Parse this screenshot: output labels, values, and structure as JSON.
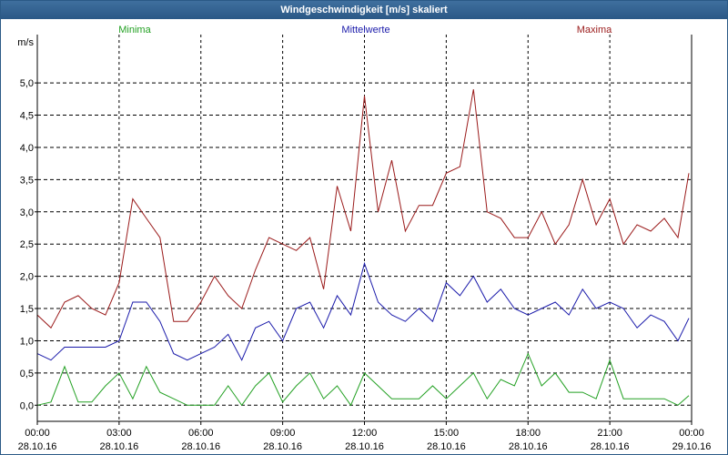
{
  "window": {
    "title": "Windgeschwindigkeit [m/s] skaliert"
  },
  "chart_data": {
    "type": "line",
    "title": "Windgeschwindigkeit [m/s] skaliert",
    "ylabel": "m/s",
    "ylim": [
      -0.25,
      5.75
    ],
    "xlim": [
      0,
      24
    ],
    "yticks": [
      0.0,
      0.5,
      1.0,
      1.5,
      2.0,
      2.5,
      3.0,
      3.5,
      4.0,
      4.5,
      5.0
    ],
    "ytick_labels": [
      "0,0",
      "0,5",
      "1,0",
      "1,5",
      "2,0",
      "2,5",
      "3,0",
      "3,5",
      "4,0",
      "4,5",
      "5,0"
    ],
    "xticks": [
      {
        "t": 0,
        "time": "00:00",
        "date": "28.10.16"
      },
      {
        "t": 3,
        "time": "03:00",
        "date": "28.10.16"
      },
      {
        "t": 6,
        "time": "06:00",
        "date": "28.10.16"
      },
      {
        "t": 9,
        "time": "09:00",
        "date": "28.10.16"
      },
      {
        "t": 12,
        "time": "12:00",
        "date": "28.10.16"
      },
      {
        "t": 15,
        "time": "15:00",
        "date": "28.10.16"
      },
      {
        "t": 18,
        "time": "18:00",
        "date": "28.10.16"
      },
      {
        "t": 21,
        "time": "21:00",
        "date": "28.10.16"
      },
      {
        "t": 24,
        "time": "00:00",
        "date": "29.10.16"
      }
    ],
    "x_hours": [
      0,
      0.5,
      1,
      1.5,
      2,
      2.5,
      3,
      3.5,
      4,
      4.5,
      5,
      5.5,
      6,
      6.5,
      7,
      7.5,
      8,
      8.5,
      9,
      9.5,
      10,
      10.5,
      11,
      11.5,
      12,
      12.5,
      13,
      13.5,
      14,
      14.5,
      15,
      15.5,
      16,
      16.5,
      17,
      17.5,
      18,
      18.5,
      19,
      19.5,
      20,
      20.5,
      21,
      21.5,
      22,
      22.5,
      23,
      23.5,
      23.9
    ],
    "series": [
      {
        "name": "Minima",
        "color": "#22a022",
        "values": [
          0.0,
          0.05,
          0.6,
          0.05,
          0.05,
          0.3,
          0.5,
          0.1,
          0.6,
          0.2,
          0.1,
          0.0,
          0.0,
          0.0,
          0.3,
          0.0,
          0.3,
          0.5,
          0.05,
          0.3,
          0.5,
          0.1,
          0.3,
          0.0,
          0.5,
          0.3,
          0.1,
          0.1,
          0.1,
          0.3,
          0.1,
          0.3,
          0.5,
          0.1,
          0.4,
          0.3,
          0.8,
          0.3,
          0.5,
          0.2,
          0.2,
          0.1,
          0.7,
          0.1,
          0.1,
          0.1,
          0.1,
          0.0,
          0.15
        ]
      },
      {
        "name": "Mittelwerte",
        "color": "#1a1aaa",
        "values": [
          0.8,
          0.7,
          0.9,
          0.9,
          0.9,
          0.9,
          1.0,
          1.6,
          1.6,
          1.3,
          0.8,
          0.7,
          0.8,
          0.9,
          1.1,
          0.7,
          1.2,
          1.3,
          1.0,
          1.5,
          1.6,
          1.2,
          1.7,
          1.4,
          2.2,
          1.6,
          1.4,
          1.3,
          1.5,
          1.3,
          1.9,
          1.7,
          2.0,
          1.6,
          1.8,
          1.5,
          1.4,
          1.5,
          1.6,
          1.4,
          1.8,
          1.5,
          1.6,
          1.5,
          1.2,
          1.4,
          1.3,
          1.0,
          1.35
        ]
      },
      {
        "name": "Maxima",
        "color": "#9a1a1a",
        "values": [
          1.4,
          1.2,
          1.6,
          1.7,
          1.5,
          1.4,
          1.9,
          3.2,
          2.9,
          2.6,
          1.3,
          1.3,
          1.6,
          2.0,
          1.7,
          1.5,
          2.1,
          2.6,
          2.5,
          2.4,
          2.6,
          1.8,
          3.4,
          2.7,
          4.8,
          3.0,
          3.8,
          2.7,
          3.1,
          3.1,
          3.6,
          3.7,
          4.9,
          3.0,
          2.9,
          2.6,
          2.6,
          3.0,
          2.5,
          2.8,
          3.5,
          2.8,
          3.2,
          2.5,
          2.8,
          2.7,
          2.9,
          2.6,
          3.6
        ]
      }
    ]
  }
}
